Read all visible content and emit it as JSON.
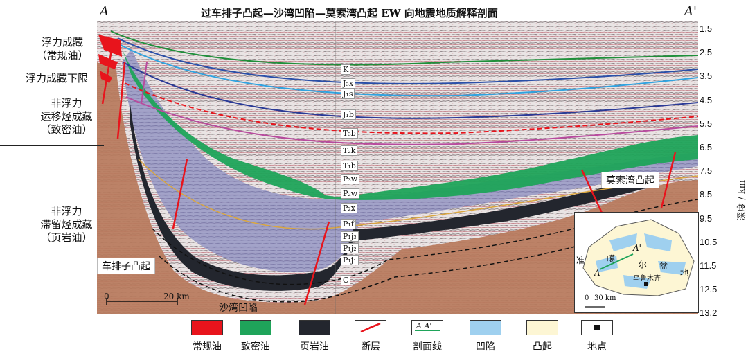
{
  "title": "过车排子凸起—沙湾凹陷—莫索湾凸起 EW 向地震地质解释剖面",
  "endpoints": {
    "left": "A",
    "right": "A'"
  },
  "left_annotations": {
    "float_conventional": [
      "浮力成藏",
      "（常规油）"
    ],
    "float_lower_limit": "浮力成藏下限",
    "non_float_migration": [
      "非浮力",
      "运移烃成藏",
      "（致密油）"
    ],
    "non_float_retention": [
      "非浮力",
      "滞留烃成藏",
      "（页岩油）"
    ]
  },
  "depth_axis": {
    "label": "深度 / km",
    "ticks": [
      "1.5",
      "2.5",
      "3.5",
      "4.5",
      "5.5",
      "6.5",
      "7.5",
      "8.5",
      "9.5",
      "10.5",
      "11.5",
      "12.5",
      "13.2"
    ]
  },
  "strata": [
    "K",
    "J₃x",
    "J₁s",
    "J₁b",
    "T₃b",
    "T₂k",
    "T₁b",
    "P₃w",
    "P₂w",
    "P₂x",
    "P₁f",
    "P₁j₃",
    "P₁j₂",
    "P₁j₁",
    "C"
  ],
  "callouts": {
    "chepaizi": "车排子凸起",
    "shawan": "沙湾凹陷",
    "mosuowan": "莫索湾凸起"
  },
  "scale_bar": {
    "start": "0",
    "end": "20 km"
  },
  "inset": {
    "labels": [
      "准",
      "噶",
      "尔",
      "盆",
      "地"
    ],
    "line_a": "A",
    "line_a_prime": "A'",
    "city": "乌鲁木齐",
    "scale_start": "0",
    "scale_end": "30 km"
  },
  "legend": [
    {
      "label": "常规油",
      "color": "#e8141c",
      "kind": "fill"
    },
    {
      "label": "致密油",
      "color": "#1fa45a",
      "kind": "fill"
    },
    {
      "label": "页岩油",
      "color": "#23262e",
      "kind": "fill"
    },
    {
      "label": "断层",
      "color": "#e8141c",
      "kind": "fault"
    },
    {
      "label": "剖面线",
      "color": "#1fa45a",
      "kind": "line",
      "text": "A   A'"
    },
    {
      "label": "凹陷",
      "color": "#9fd0ef",
      "kind": "fill"
    },
    {
      "label": "凸起",
      "color": "#fdf6d4",
      "kind": "fill"
    },
    {
      "label": "地点",
      "color": "#111111",
      "kind": "point"
    }
  ],
  "colors": {
    "tight_oil": "#1fa45a",
    "shale_oil": "#23262e",
    "conventional": "#e8141c",
    "basement": "#b77a5c",
    "purple_zone": "#a8a3cf"
  }
}
